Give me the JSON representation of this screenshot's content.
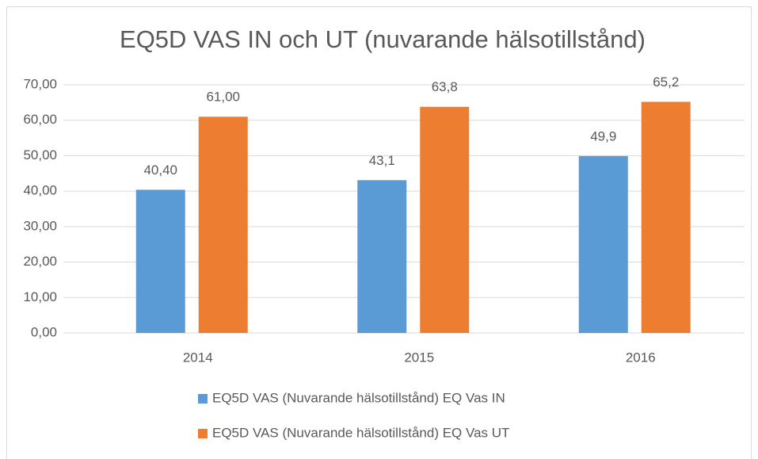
{
  "chart_data": {
    "type": "bar",
    "title": "EQ5D VAS IN och UT (nuvarande hälsotillstånd)",
    "categories": [
      "2014",
      "2015",
      "2016"
    ],
    "series": [
      {
        "name": "EQ5D VAS (Nuvarande hälsotillstånd) EQ Vas IN",
        "color": "#5b9bd5",
        "values": [
          40.4,
          43.1,
          49.9
        ],
        "value_labels": [
          "40,40",
          "43,1",
          "49,9"
        ]
      },
      {
        "name": "EQ5D VAS (Nuvarande hälsotillstånd) EQ Vas UT",
        "color": "#ed7d31",
        "values": [
          61,
          63.8,
          65.2
        ],
        "value_labels": [
          "61,00",
          "63,8",
          "65,2"
        ]
      }
    ],
    "ylim": [
      0,
      70
    ],
    "yticks": [
      {
        "value": 0,
        "label": "0,00"
      },
      {
        "value": 10,
        "label": "10,00"
      },
      {
        "value": 20,
        "label": "20,00"
      },
      {
        "value": 30,
        "label": "30,00"
      },
      {
        "value": 40,
        "label": "40,00"
      },
      {
        "value": 50,
        "label": "50,00"
      },
      {
        "value": 60,
        "label": "60,00"
      },
      {
        "value": 70,
        "label": "70,00"
      }
    ],
    "grid": true,
    "legend": "bottom"
  }
}
